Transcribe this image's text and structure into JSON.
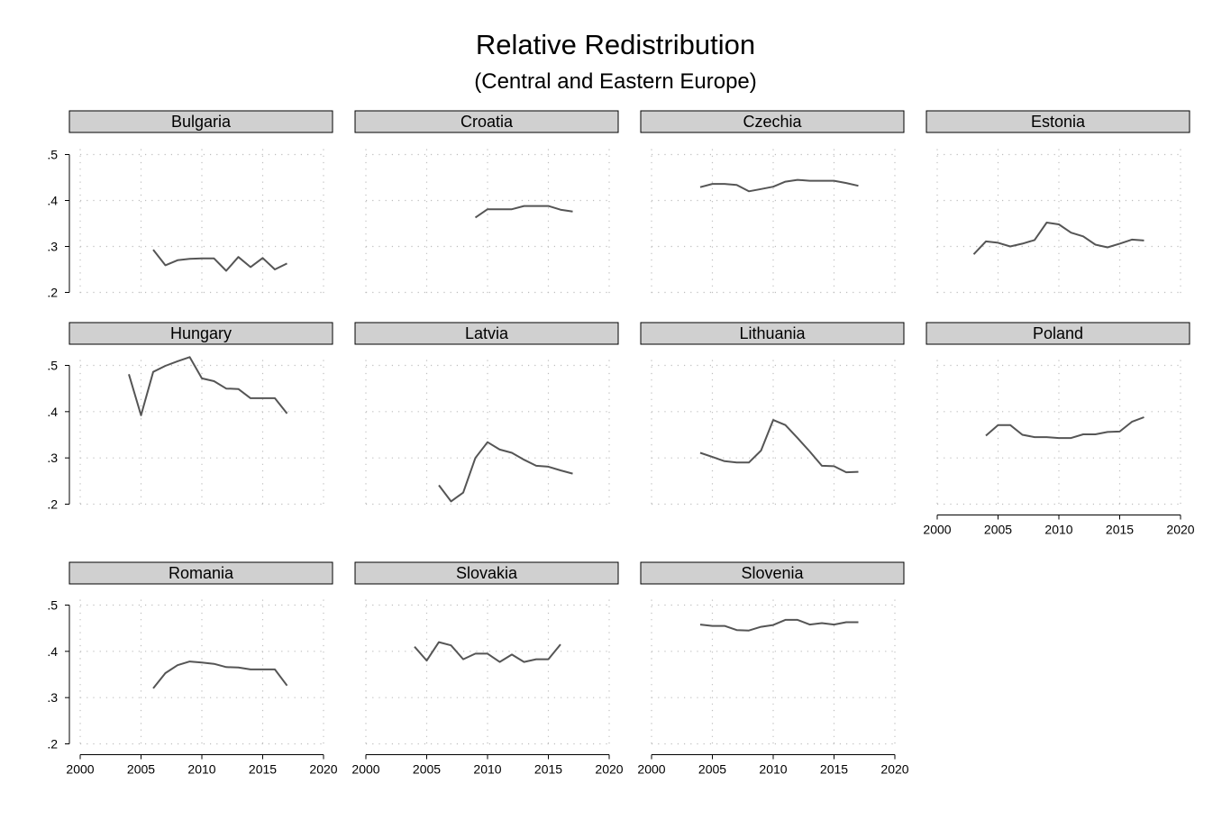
{
  "title": "Relative Redistribution",
  "subtitle": "(Central and Eastern Europe)",
  "chart_data": {
    "type": "line",
    "title": "Relative Redistribution",
    "subtitle": "(Central and Eastern Europe)",
    "xlim": [
      2000,
      2020
    ],
    "ylim": [
      0.2,
      0.5
    ],
    "x_ticks": [
      2000,
      2005,
      2010,
      2015,
      2020
    ],
    "x_tick_labels": [
      "2000",
      "2005",
      "2010",
      "2015",
      "2020"
    ],
    "y_ticks": [
      0.2,
      0.3,
      0.4,
      0.5
    ],
    "y_tick_labels": [
      ".2",
      ".3",
      ".4",
      ".5"
    ],
    "grid": true,
    "line_color": "#555555",
    "panel_header_color": "#d0d0d0",
    "panels": [
      {
        "name": "Bulgaria",
        "x": [
          2006,
          2007,
          2008,
          2009,
          2010,
          2011,
          2012,
          2013,
          2014,
          2015,
          2016,
          2017
        ],
        "y": [
          0.293,
          0.259,
          0.27,
          0.273,
          0.274,
          0.274,
          0.247,
          0.277,
          0.255,
          0.275,
          0.25,
          0.263
        ]
      },
      {
        "name": "Croatia",
        "x": [
          2009,
          2010,
          2011,
          2012,
          2013,
          2014,
          2015,
          2016,
          2017
        ],
        "y": [
          0.363,
          0.381,
          0.381,
          0.381,
          0.388,
          0.388,
          0.388,
          0.38,
          0.376
        ]
      },
      {
        "name": "Czechia",
        "x": [
          2004,
          2005,
          2006,
          2007,
          2008,
          2009,
          2010,
          2011,
          2012,
          2013,
          2014,
          2015,
          2016,
          2017
        ],
        "y": [
          0.429,
          0.436,
          0.436,
          0.434,
          0.42,
          0.425,
          0.43,
          0.441,
          0.445,
          0.443,
          0.443,
          0.443,
          0.438,
          0.432
        ]
      },
      {
        "name": "Estonia",
        "x": [
          2003,
          2004,
          2005,
          2006,
          2007,
          2008,
          2009,
          2010,
          2011,
          2012,
          2013,
          2014,
          2015,
          2016,
          2017
        ],
        "y": [
          0.283,
          0.311,
          0.308,
          0.3,
          0.306,
          0.314,
          0.352,
          0.348,
          0.33,
          0.322,
          0.304,
          0.298,
          0.306,
          0.315,
          0.313
        ]
      },
      {
        "name": "Hungary",
        "x": [
          2004,
          2005,
          2006,
          2007,
          2008,
          2009,
          2010,
          2011,
          2012,
          2013,
          2014,
          2015,
          2016,
          2017
        ],
        "y": [
          0.481,
          0.392,
          0.486,
          0.499,
          0.509,
          0.518,
          0.472,
          0.466,
          0.45,
          0.449,
          0.429,
          0.429,
          0.429,
          0.396
        ]
      },
      {
        "name": "Latvia",
        "x": [
          2006,
          2007,
          2008,
          2009,
          2010,
          2011,
          2012,
          2013,
          2014,
          2015,
          2016,
          2017
        ],
        "y": [
          0.241,
          0.206,
          0.225,
          0.3,
          0.334,
          0.318,
          0.311,
          0.296,
          0.283,
          0.281,
          0.273,
          0.266
        ]
      },
      {
        "name": "Lithuania",
        "x": [
          2004,
          2005,
          2006,
          2007,
          2008,
          2009,
          2010,
          2011,
          2012,
          2013,
          2014,
          2015,
          2016,
          2017
        ],
        "y": [
          0.311,
          0.302,
          0.293,
          0.29,
          0.29,
          0.316,
          0.382,
          0.371,
          0.343,
          0.314,
          0.283,
          0.282,
          0.269,
          0.27
        ]
      },
      {
        "name": "Poland",
        "x": [
          2004,
          2005,
          2006,
          2007,
          2008,
          2009,
          2010,
          2011,
          2012,
          2013,
          2014,
          2015,
          2016,
          2017
        ],
        "y": [
          0.348,
          0.371,
          0.371,
          0.35,
          0.345,
          0.345,
          0.343,
          0.343,
          0.351,
          0.351,
          0.356,
          0.357,
          0.378,
          0.388
        ]
      },
      {
        "name": "Romania",
        "x": [
          2006,
          2007,
          2008,
          2009,
          2010,
          2011,
          2012,
          2013,
          2014,
          2015,
          2016,
          2017
        ],
        "y": [
          0.32,
          0.353,
          0.37,
          0.378,
          0.376,
          0.373,
          0.366,
          0.365,
          0.361,
          0.361,
          0.361,
          0.326
        ]
      },
      {
        "name": "Slovakia",
        "x": [
          2004,
          2005,
          2006,
          2007,
          2008,
          2009,
          2010,
          2011,
          2012,
          2013,
          2014,
          2015,
          2016
        ],
        "y": [
          0.41,
          0.38,
          0.42,
          0.413,
          0.383,
          0.395,
          0.395,
          0.377,
          0.393,
          0.377,
          0.383,
          0.383,
          0.415
        ]
      },
      {
        "name": "Slovenia",
        "x": [
          2004,
          2005,
          2006,
          2007,
          2008,
          2009,
          2010,
          2011,
          2012,
          2013,
          2014,
          2015,
          2016,
          2017
        ],
        "y": [
          0.458,
          0.455,
          0.455,
          0.446,
          0.445,
          0.453,
          0.457,
          0.468,
          0.468,
          0.458,
          0.461,
          0.458,
          0.463,
          0.463
        ]
      }
    ]
  }
}
